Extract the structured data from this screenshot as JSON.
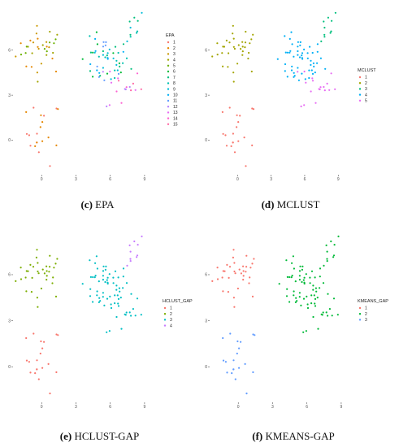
{
  "chart_data": [
    {
      "type": "scatter",
      "caption_letter": "(c)",
      "caption_text": "EPA",
      "legend_title": "EPA",
      "legend": [
        "1",
        "2",
        "3",
        "4",
        "5",
        "6",
        "7",
        "8",
        "9",
        "10",
        "11",
        "12",
        "13",
        "14",
        "15"
      ],
      "colors": [
        "#F8766D",
        "#E58700",
        "#C99800",
        "#A3A500",
        "#6BB100",
        "#00BA38",
        "#00BF7D",
        "#00C0AF",
        "#00BCD8",
        "#00B0F6",
        "#619CFF",
        "#B983FF",
        "#E76BF3",
        "#FD61D1",
        "#FF67A4"
      ],
      "xticks": [
        0,
        3,
        6,
        9
      ],
      "yticks": [
        0,
        3,
        6
      ],
      "xlim": [
        -2.5,
        10
      ],
      "ylim": [
        -2.3,
        8.8
      ],
      "grid": false,
      "legend_position": "right"
    },
    {
      "type": "scatter",
      "caption_letter": "(d)",
      "caption_text": "MCLUST",
      "legend_title": "MCLUST",
      "legend": [
        "1",
        "2",
        "3",
        "4",
        "5"
      ],
      "colors": [
        "#F8766D",
        "#A3A500",
        "#00BF7D",
        "#00B0F6",
        "#E76BF3"
      ],
      "xticks": [
        0,
        3,
        6,
        9
      ],
      "yticks": [
        0,
        3,
        6
      ],
      "xlim": [
        -2.5,
        10
      ],
      "ylim": [
        -2.3,
        8.8
      ],
      "grid": false,
      "legend_position": "right"
    },
    {
      "type": "scatter",
      "caption_letter": "(e)",
      "caption_text": "HCLUST-GAP",
      "legend_title": "HCLUST_GAP",
      "legend": [
        "1",
        "2",
        "3",
        "4"
      ],
      "colors": [
        "#F8766D",
        "#7CAE00",
        "#00BFC4",
        "#C77CFF"
      ],
      "xticks": [
        0,
        3,
        6,
        9
      ],
      "yticks": [
        0,
        3,
        6
      ],
      "xlim": [
        -2.5,
        10
      ],
      "ylim": [
        -2.3,
        8.8
      ],
      "grid": false,
      "legend_position": "right"
    },
    {
      "type": "scatter",
      "caption_letter": "(f)",
      "caption_text": "KMEANS-GAP",
      "legend_title": "KMEANS_GAP",
      "legend": [
        "1",
        "2",
        "3"
      ],
      "colors": [
        "#F8766D",
        "#00BA38",
        "#619CFF"
      ],
      "xticks": [
        0,
        3,
        6,
        9
      ],
      "yticks": [
        0,
        3,
        6
      ],
      "xlim": [
        -2.5,
        10
      ],
      "ylim": [
        -2.3,
        8.8
      ],
      "grid": false,
      "legend_position": "right"
    }
  ]
}
